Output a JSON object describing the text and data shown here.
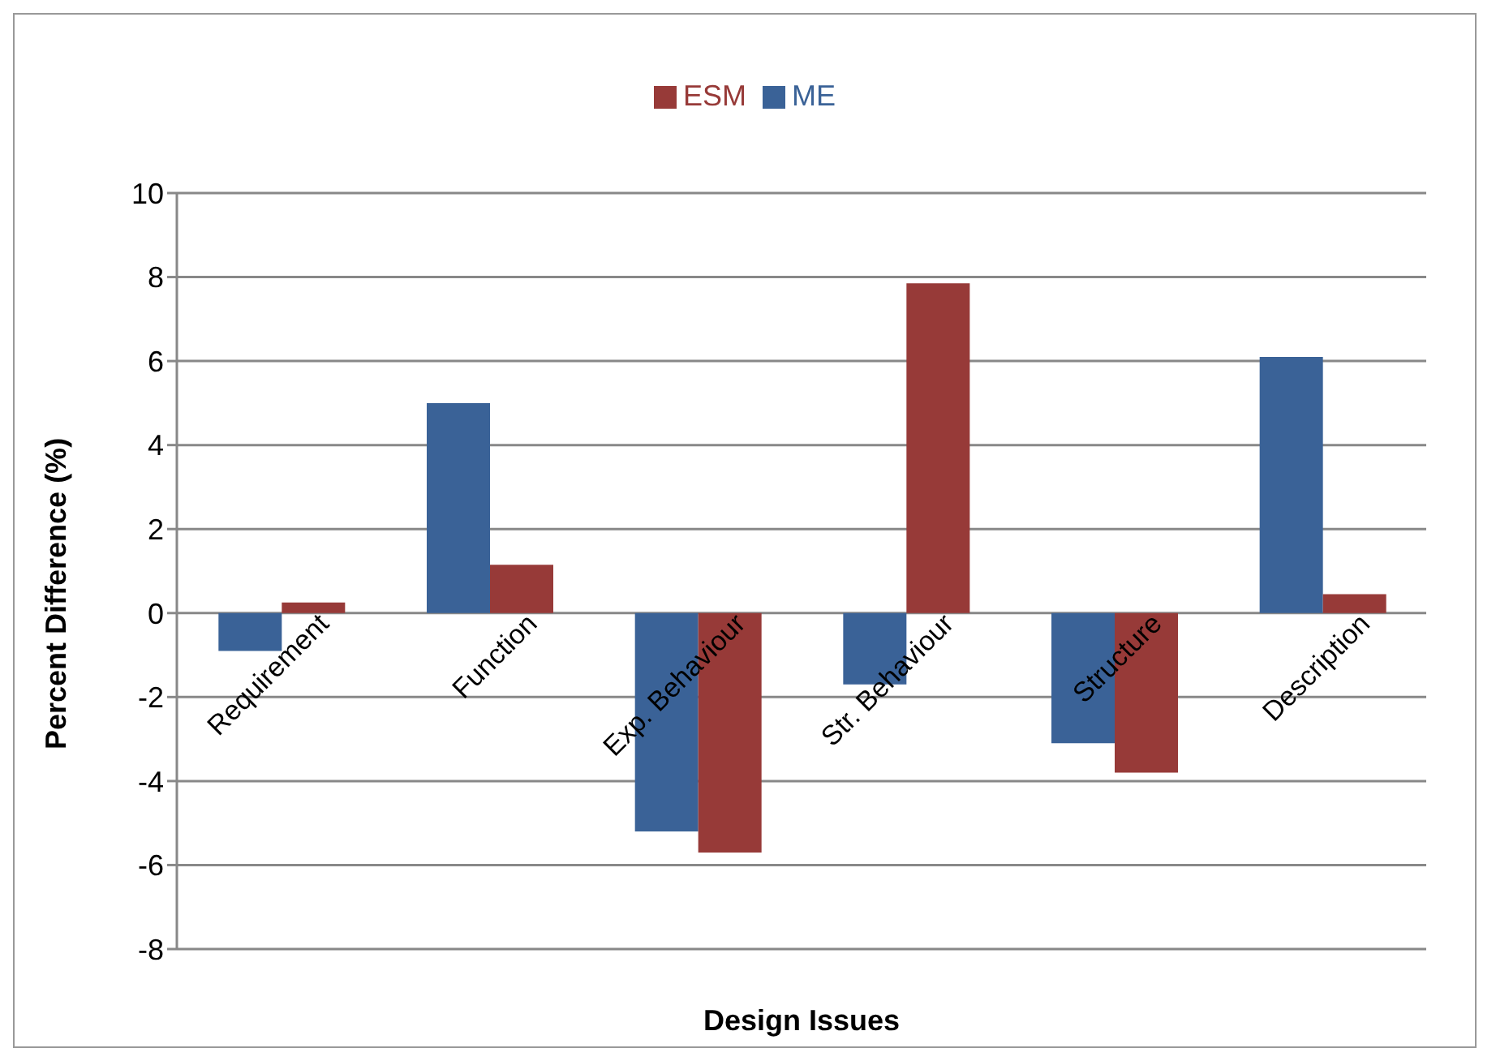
{
  "chart_data": {
    "type": "bar",
    "xlabel": "Design Issues",
    "ylabel": "Percent Difference (%)",
    "categories": [
      "Requirement",
      "Function",
      "Exp. Behaviour",
      "Str. Behaviour",
      "Structure",
      "Description"
    ],
    "series": [
      {
        "name": "ME",
        "color": "#3a6297",
        "values": [
          -0.9,
          5.0,
          -5.2,
          -1.7,
          -3.1,
          6.1
        ]
      },
      {
        "name": "ESM",
        "color": "#973a38",
        "values": [
          0.25,
          1.15,
          -5.7,
          7.85,
          -3.8,
          0.45
        ]
      }
    ],
    "ylim": [
      -8,
      10
    ],
    "yticks": [
      -8,
      -6,
      -4,
      -2,
      0,
      2,
      4,
      6,
      8,
      10
    ],
    "grid": "y",
    "legend": "top"
  }
}
